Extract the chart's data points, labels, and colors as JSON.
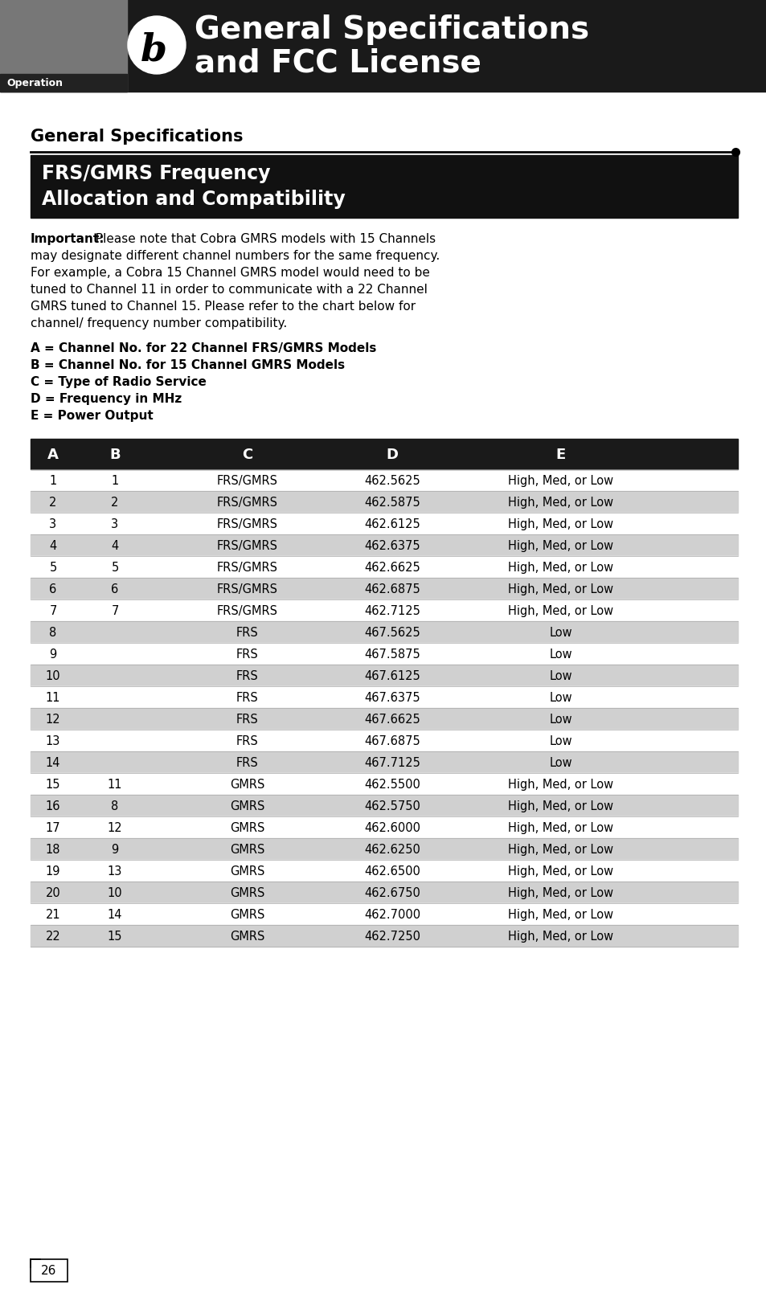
{
  "page_bg": "#ffffff",
  "header_bg": "#1a1a1a",
  "header_icon_bg": "#777777",
  "operation_label": "Operation",
  "section_title": "General Specifications",
  "box_title_line1": "FRS/GMRS Frequency",
  "box_title_line2": "Allocation and Compatibility",
  "important_bold": "Important:",
  "important_rest": " Please note that Cobra GMRS models with 15 Channels",
  "important_lines": [
    "may designate different channel numbers for the same frequency.",
    "For example, a Cobra 15 Channel GMRS model would need to be",
    "tuned to Channel 11 in order to communicate with a 22 Channel",
    "GMRS tuned to Channel 15. Please refer to the chart below for",
    "channel/ frequency number compatibility."
  ],
  "legend_lines": [
    "A = Channel No. for 22 Channel FRS/GMRS Models",
    "B = Channel No. for 15 Channel GMRS Models",
    "C = Type of Radio Service",
    "D = Frequency in MHz",
    "E = Power Output"
  ],
  "table_header": [
    "A",
    "B",
    "C",
    "D",
    "E"
  ],
  "table_header_bg": "#1a1a1a",
  "table_rows": [
    [
      "1",
      "1",
      "FRS/GMRS",
      "462.5625",
      "High, Med, or Low"
    ],
    [
      "2",
      "2",
      "FRS/GMRS",
      "462.5875",
      "High, Med, or Low"
    ],
    [
      "3",
      "3",
      "FRS/GMRS",
      "462.6125",
      "High, Med, or Low"
    ],
    [
      "4",
      "4",
      "FRS/GMRS",
      "462.6375",
      "High, Med, or Low"
    ],
    [
      "5",
      "5",
      "FRS/GMRS",
      "462.6625",
      "High, Med, or Low"
    ],
    [
      "6",
      "6",
      "FRS/GMRS",
      "462.6875",
      "High, Med, or Low"
    ],
    [
      "7",
      "7",
      "FRS/GMRS",
      "462.7125",
      "High, Med, or Low"
    ],
    [
      "8",
      "",
      "FRS",
      "467.5625",
      "Low"
    ],
    [
      "9",
      "",
      "FRS",
      "467.5875",
      "Low"
    ],
    [
      "10",
      "",
      "FRS",
      "467.6125",
      "Low"
    ],
    [
      "11",
      "",
      "FRS",
      "467.6375",
      "Low"
    ],
    [
      "12",
      "",
      "FRS",
      "467.6625",
      "Low"
    ],
    [
      "13",
      "",
      "FRS",
      "467.6875",
      "Low"
    ],
    [
      "14",
      "",
      "FRS",
      "467.7125",
      "Low"
    ],
    [
      "15",
      "11",
      "GMRS",
      "462.5500",
      "High, Med, or Low"
    ],
    [
      "16",
      "8",
      "GMRS",
      "462.5750",
      "High, Med, or Low"
    ],
    [
      "17",
      "12",
      "GMRS",
      "462.6000",
      "High, Med, or Low"
    ],
    [
      "18",
      "9",
      "GMRS",
      "462.6250",
      "High, Med, or Low"
    ],
    [
      "19",
      "13",
      "GMRS",
      "462.6500",
      "High, Med, or Low"
    ],
    [
      "20",
      "10",
      "GMRS",
      "462.6750",
      "High, Med, or Low"
    ],
    [
      "21",
      "14",
      "GMRS",
      "462.7000",
      "High, Med, or Low"
    ],
    [
      "22",
      "15",
      "GMRS",
      "462.7250",
      "High, Med, or Low"
    ]
  ],
  "row_colors": [
    "#ffffff",
    "#d0d0d0"
  ],
  "page_number": "26"
}
